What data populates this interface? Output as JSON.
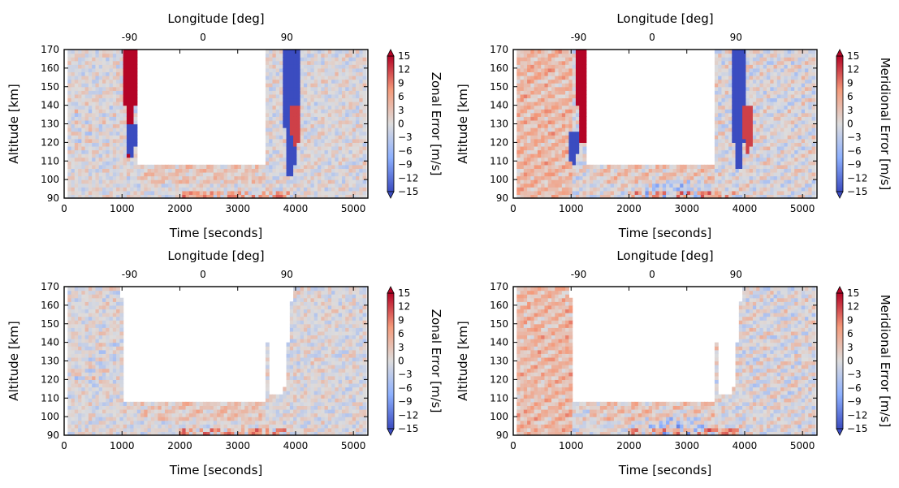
{
  "chart_data": [
    {
      "type": "heatmap",
      "panel": "top-left",
      "xlabel": "Time [seconds]",
      "ylabel": "Altitude [km]",
      "top_axis_label": "Longitude [deg]",
      "xlim": [
        0,
        5250
      ],
      "ylim": [
        90,
        170
      ],
      "x_ticks": [
        "0",
        "1000",
        "2000",
        "3000",
        "4000",
        "5000"
      ],
      "y_ticks": [
        "90",
        "100",
        "110",
        "120",
        "130",
        "140",
        "150",
        "160",
        "170"
      ],
      "top_ticks": [
        {
          "label": "-90",
          "time": 1130
        },
        {
          "label": "0",
          "time": 2400
        },
        {
          "label": "90",
          "time": 3850
        }
      ],
      "colorbar": {
        "label": "Zonal Error [m/s]",
        "range": [
          -15,
          15
        ],
        "ticks": [
          "15",
          "12",
          "9",
          "6",
          "3",
          "0",
          "−3",
          "−6",
          "−9",
          "−12",
          "−15"
        ]
      },
      "data_region": {
        "gap_time": [
          1250,
          3500
        ],
        "gap_min_alt": 107
      },
      "features": [
        {
          "kind": "positive-core",
          "time": 1140,
          "alt_range": [
            112,
            170
          ],
          "value": 15
        },
        {
          "kind": "negative-core",
          "time": 1160,
          "alt_range": [
            113,
            130
          ],
          "value": -15
        },
        {
          "kind": "negative-core",
          "time": 3920,
          "alt_range": [
            103,
            170
          ],
          "value": -15
        },
        {
          "kind": "positive-core",
          "time": 4000,
          "alt_range": [
            118,
            140
          ],
          "value": 12
        }
      ]
    },
    {
      "type": "heatmap",
      "panel": "top-right",
      "xlabel": "Time [seconds]",
      "ylabel": "Altitude [km]",
      "top_axis_label": "Longitude [deg]",
      "xlim": [
        0,
        5250
      ],
      "ylim": [
        90,
        170
      ],
      "x_ticks": [
        "0",
        "1000",
        "2000",
        "3000",
        "4000",
        "5000"
      ],
      "y_ticks": [
        "90",
        "100",
        "110",
        "120",
        "130",
        "140",
        "150",
        "160",
        "170"
      ],
      "top_ticks": [
        {
          "label": "-90",
          "time": 1130
        },
        {
          "label": "0",
          "time": 2400
        },
        {
          "label": "90",
          "time": 3850
        }
      ],
      "colorbar": {
        "label": "Meridional Error [m/s]",
        "range": [
          -15,
          15
        ],
        "ticks": [
          "15",
          "12",
          "9",
          "6",
          "3",
          "0",
          "−3",
          "−6",
          "−9",
          "−12",
          "−15"
        ]
      },
      "data_region": {
        "gap_time": [
          1250,
          3500
        ],
        "gap_min_alt": 107
      },
      "features": [
        {
          "kind": "positive-core",
          "time": 1190,
          "alt_range": [
            120,
            170
          ],
          "value": 15
        },
        {
          "kind": "negative-core",
          "time": 1040,
          "alt_range": [
            108,
            125
          ],
          "value": -15
        },
        {
          "kind": "negative-core",
          "time": 3900,
          "alt_range": [
            106,
            170
          ],
          "value": -15
        },
        {
          "kind": "positive-core",
          "time": 4060,
          "alt_range": [
            115,
            140
          ],
          "value": 12
        }
      ]
    },
    {
      "type": "heatmap",
      "panel": "bottom-left",
      "xlabel": "Time [seconds]",
      "ylabel": "Altitude [km]",
      "top_axis_label": "Longitude [deg]",
      "xlim": [
        0,
        5250
      ],
      "ylim": [
        90,
        170
      ],
      "x_ticks": [
        "0",
        "1000",
        "2000",
        "3000",
        "4000",
        "5000"
      ],
      "y_ticks": [
        "90",
        "100",
        "110",
        "120",
        "130",
        "140",
        "150",
        "160",
        "170"
      ],
      "top_ticks": [
        {
          "label": "-90",
          "time": 1130
        },
        {
          "label": "0",
          "time": 2400
        },
        {
          "label": "90",
          "time": 3850
        }
      ],
      "colorbar": {
        "label": "Zonal Error [m/s]",
        "range": [
          -15,
          15
        ],
        "ticks": [
          "15",
          "12",
          "9",
          "6",
          "3",
          "0",
          "−3",
          "−6",
          "−9",
          "−12",
          "−15"
        ]
      },
      "data_region": {
        "masked_wedges": true
      },
      "features": []
    },
    {
      "type": "heatmap",
      "panel": "bottom-right",
      "xlabel": "Time [seconds]",
      "ylabel": "Altitude [km]",
      "top_axis_label": "Longitude [deg]",
      "xlim": [
        0,
        5250
      ],
      "ylim": [
        90,
        170
      ],
      "x_ticks": [
        "0",
        "1000",
        "2000",
        "3000",
        "4000",
        "5000"
      ],
      "y_ticks": [
        "90",
        "100",
        "110",
        "120",
        "130",
        "140",
        "150",
        "160",
        "170"
      ],
      "top_ticks": [
        {
          "label": "-90",
          "time": 1130
        },
        {
          "label": "0",
          "time": 2400
        },
        {
          "label": "90",
          "time": 3850
        }
      ],
      "colorbar": {
        "label": "Meridional Error [m/s]",
        "range": [
          -15,
          15
        ],
        "ticks": [
          "15",
          "12",
          "9",
          "6",
          "3",
          "0",
          "−3",
          "−6",
          "−9",
          "−12",
          "−15"
        ]
      },
      "data_region": {
        "masked_wedges": true
      },
      "features": []
    }
  ],
  "colors": {
    "neutral": "#dddcdc",
    "positive_max": "#b40426",
    "negative_max": "#3b4cc0"
  }
}
